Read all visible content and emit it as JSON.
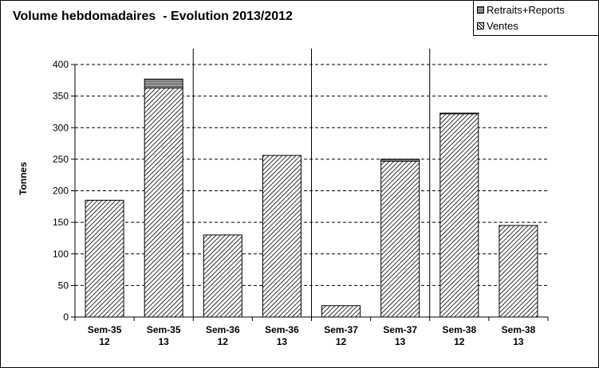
{
  "chart_data": {
    "type": "bar",
    "title": "Volume hebdomadaires  - Evolution 2013/2012",
    "ylabel": "Tonnes",
    "xlabel": "",
    "ylim": [
      0,
      400
    ],
    "yticks": [
      0,
      50,
      100,
      150,
      200,
      250,
      300,
      350,
      400
    ],
    "grid": true,
    "legend_position": "top-right",
    "categories": [
      [
        "Sem-35",
        "12"
      ],
      [
        "Sem-35",
        "13"
      ],
      [
        "Sem-36",
        "12"
      ],
      [
        "Sem-36",
        "13"
      ],
      [
        "Sem-37",
        "12"
      ],
      [
        "Sem-37",
        "13"
      ],
      [
        "Sem-38",
        "12"
      ],
      [
        "Sem-38",
        "13"
      ]
    ],
    "stacked": true,
    "series": [
      {
        "name": "Ventes",
        "values": [
          185,
          363,
          130,
          256,
          18,
          247,
          322,
          145
        ],
        "pattern": "diagonal-hatch"
      },
      {
        "name": "Retraits+Reports",
        "values": [
          0,
          14,
          0,
          0,
          0,
          3,
          1,
          0
        ],
        "pattern": "horizontal-lines"
      }
    ],
    "legend_order": [
      "Retraits+Reports",
      "Ventes"
    ]
  }
}
